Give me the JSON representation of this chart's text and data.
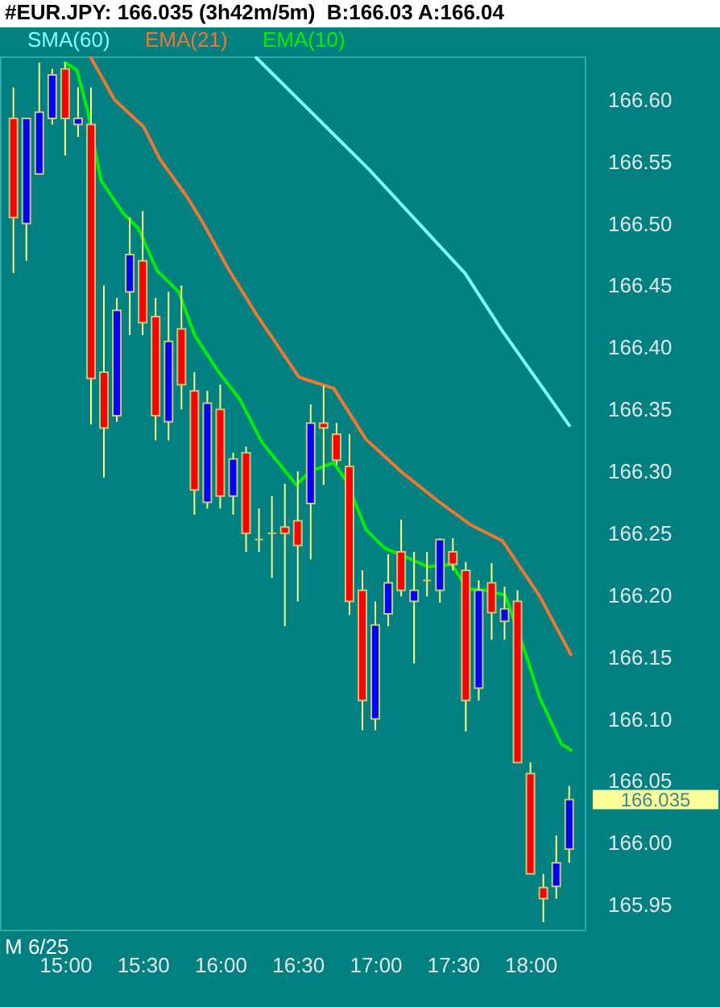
{
  "chart_data": {
    "type": "candlestick",
    "title": "#EUR.JPY: 166.035 (3h42m/5m)  B:166.03 A:166.04",
    "x": [
      14.6667,
      14.75,
      14.8333,
      14.9167,
      15,
      15.0833,
      15.1667,
      15.25,
      15.3333,
      15.4167,
      15.5,
      15.5833,
      15.6667,
      15.75,
      15.8333,
      15.9167,
      16,
      16.0833,
      16.1667,
      16.25,
      16.3333,
      16.4167,
      16.5,
      16.5833,
      16.6667,
      16.75,
      16.8333,
      16.9167,
      17,
      17.0833,
      17.1667,
      17.25,
      17.3333,
      17.4167,
      17.5,
      17.5833,
      17.6667,
      17.75,
      17.8333,
      17.9167,
      18,
      18.0833,
      18.1667,
      18.25
    ],
    "ohlc": [
      [
        166.585,
        166.61,
        166.46,
        166.505
      ],
      [
        166.5,
        166.585,
        166.47,
        166.585
      ],
      [
        166.54,
        166.63,
        166.54,
        166.59
      ],
      [
        166.585,
        166.625,
        166.58,
        166.62
      ],
      [
        166.625,
        166.63,
        166.555,
        166.585
      ],
      [
        166.58,
        166.61,
        166.57,
        166.585
      ],
      [
        166.58,
        166.61,
        166.338,
        166.375
      ],
      [
        166.38,
        166.45,
        166.295,
        166.335
      ],
      [
        166.345,
        166.44,
        166.34,
        166.43
      ],
      [
        166.445,
        166.505,
        166.41,
        166.475
      ],
      [
        166.47,
        166.51,
        166.41,
        166.42
      ],
      [
        166.425,
        166.44,
        166.325,
        166.345
      ],
      [
        166.34,
        166.445,
        166.325,
        166.405
      ],
      [
        166.415,
        166.45,
        166.35,
        166.37
      ],
      [
        166.365,
        166.38,
        166.265,
        166.285
      ],
      [
        166.275,
        166.365,
        166.27,
        166.355
      ],
      [
        166.35,
        166.37,
        166.27,
        166.28
      ],
      [
        166.28,
        166.315,
        166.265,
        166.31
      ],
      [
        166.315,
        166.32,
        166.235,
        166.25
      ],
      [
        166.245,
        166.27,
        166.235,
        166.245
      ],
      [
        166.25,
        166.28,
        166.214,
        166.25
      ],
      [
        166.255,
        166.29,
        166.175,
        166.25
      ],
      [
        166.26,
        166.3,
        166.195,
        166.24
      ],
      [
        166.274,
        166.354,
        166.229,
        166.339
      ],
      [
        166.339,
        166.369,
        166.289,
        166.335
      ],
      [
        166.33,
        166.339,
        166.305,
        166.309
      ],
      [
        166.304,
        166.33,
        166.184,
        166.195
      ],
      [
        166.204,
        166.22,
        166.091,
        166.115
      ],
      [
        166.1,
        166.195,
        166.091,
        166.176
      ],
      [
        166.185,
        166.233,
        166.175,
        166.21
      ],
      [
        166.235,
        166.261,
        166.199,
        166.204
      ],
      [
        166.195,
        166.235,
        166.145,
        166.204
      ],
      [
        166.212,
        166.235,
        166.199,
        166.212
      ],
      [
        166.204,
        166.246,
        166.194,
        166.245
      ],
      [
        166.235,
        166.246,
        166.22,
        166.225
      ],
      [
        166.22,
        166.227,
        166.09,
        166.115
      ],
      [
        166.125,
        166.212,
        166.115,
        166.204
      ],
      [
        166.21,
        166.226,
        166.164,
        166.186
      ],
      [
        166.179,
        166.207,
        166.164,
        166.189
      ],
      [
        166.195,
        166.204,
        166.065,
        166.065
      ],
      [
        166.056,
        166.065,
        165.975,
        165.975
      ],
      [
        165.964,
        165.975,
        165.936,
        165.955
      ],
      [
        165.965,
        166.006,
        165.955,
        165.984
      ],
      [
        165.995,
        166.046,
        165.984,
        166.035
      ]
    ],
    "series": [
      {
        "name": "SMA(60)",
        "type": "line",
        "color": "#80ffff",
        "x": [
          16.232,
          16.957,
          17.578,
          17.816,
          18.251
        ],
        "values": [
          166.634,
          166.544,
          166.46,
          166.414,
          166.337
        ]
      },
      {
        "name": "EMA(21)",
        "type": "line",
        "color": "#f07830",
        "x": [
          15.166,
          15.318,
          15.507,
          15.611,
          15.784,
          15.887,
          16.059,
          16.232,
          16.508,
          16.732,
          16.939,
          17.164,
          17.405,
          17.612,
          17.819,
          18.061,
          18.261
        ],
        "values": [
          166.634,
          166.6,
          166.578,
          166.552,
          166.522,
          166.501,
          166.462,
          166.427,
          166.376,
          166.367,
          166.326,
          166.3,
          166.276,
          166.257,
          166.244,
          166.199,
          166.152
        ]
      },
      {
        "name": "EMA(10)",
        "type": "line",
        "color": "#00ee00",
        "x": [
          15,
          15.076,
          15.145,
          15.231,
          15.37,
          15.473,
          15.593,
          15.732,
          15.835,
          15.991,
          16.128,
          16.266,
          16.491,
          16.577,
          16.732,
          16.819,
          16.939,
          17.06,
          17.233,
          17.336,
          17.492,
          17.595,
          17.715,
          17.836,
          17.94,
          18.061,
          18.199,
          18.261
        ],
        "values": [
          166.63,
          166.624,
          166.591,
          166.535,
          166.509,
          166.496,
          166.462,
          166.445,
          166.41,
          166.38,
          166.358,
          166.324,
          166.289,
          166.3,
          166.307,
          166.291,
          166.253,
          166.238,
          166.229,
          166.223,
          166.225,
          166.205,
          166.204,
          166.2,
          166.164,
          166.117,
          166.08,
          166.075
        ]
      }
    ],
    "xlim": [
      14.58,
      18.35
    ],
    "xticks": [
      {
        "value": 15,
        "label": "15:00"
      },
      {
        "value": 15.5,
        "label": "15:30"
      },
      {
        "value": 16,
        "label": "16:00"
      },
      {
        "value": 16.5,
        "label": "16:30"
      },
      {
        "value": 17,
        "label": "17:00"
      },
      {
        "value": 17.5,
        "label": "17:30"
      },
      {
        "value": 18,
        "label": "18:00"
      }
    ],
    "ylim": [
      165.93,
      166.635
    ],
    "yticks": [
      165.95,
      {
        "value": 166,
        "label": "166.00"
      },
      166.05,
      {
        "value": 166.1,
        "label": "166.10"
      },
      166.15,
      {
        "value": 166.2,
        "label": "166.20"
      },
      166.25,
      {
        "value": 166.3,
        "label": "166.30"
      },
      166.35,
      {
        "value": 166.4,
        "label": "166.40"
      },
      166.45,
      {
        "value": 166.5,
        "label": "166.50"
      },
      166.55,
      {
        "value": 166.6,
        "label": "166.60"
      }
    ],
    "annotations": [
      "M 6/25",
      "166.035"
    ],
    "legend": "top left"
  }
}
